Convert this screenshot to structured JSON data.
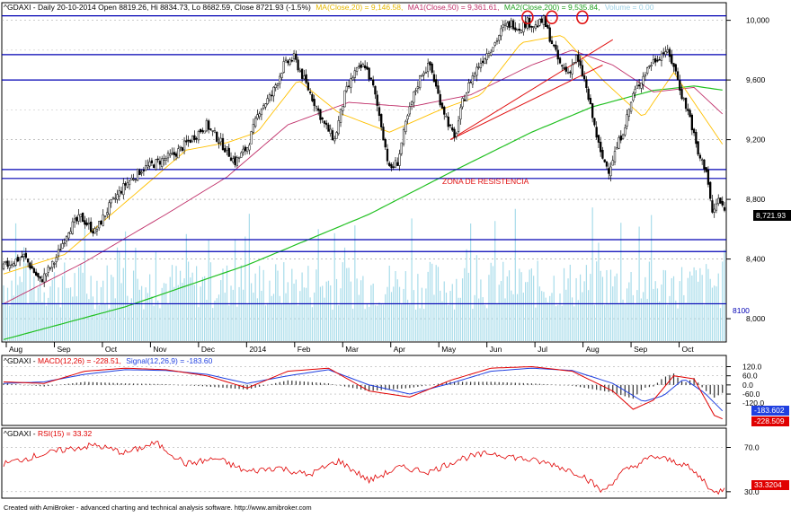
{
  "header": {
    "symbol_line": "^GDAXI - Daily 20-10-2014 Open 8819.26, Hi 8834.73, Lo 8682.59, Close 8721.93 (-1.5%)",
    "ma20": "MA(Close,20) = 9,146.58,",
    "ma50": "MA1(Close,50) = 9,361.61,",
    "ma200": "MA2(Close,200) = 9,535.84,",
    "volume": "Volume = 0.00"
  },
  "macd_header": {
    "prefix": "^GDAXI - ",
    "macd": "MACD(12,26) = -228.51,",
    "signal": "Signal(12,26,9) = -183.60"
  },
  "rsi_header": {
    "prefix": "^GDAXI - ",
    "rsi": "RSI(15) = 33.32"
  },
  "annotations": {
    "zone_label": "ZONA DE RESISTENCIA",
    "level_8100": "8100"
  },
  "last_price_tag": "8,721.93",
  "macd_tags": {
    "signal": "-183.602",
    "macd": "-228.509"
  },
  "rsi_tag": "33.3204",
  "footer": "Created with AmiBroker - advanced charting and technical analysis software. http://www.amibroker.com",
  "colors": {
    "candle": "#000000",
    "volume": "#a8dcea",
    "ma20": "#ffc000",
    "ma50": "#c0306a",
    "ma200": "#20c020",
    "hlines": "#0000b4",
    "trend": "#e01010",
    "macd": "#e00000",
    "signal": "#2040e0",
    "rsi": "#e00000"
  },
  "chart_data": [
    {
      "type": "candlestick",
      "title": "^GDAXI - Daily 20-10-2014",
      "ylim": [
        7850,
        10100
      ],
      "y_ticks": [
        8000,
        8400,
        8800,
        9200,
        9600,
        10000
      ],
      "y_tick_labels": [
        "8,000",
        "8,400",
        "8,800",
        "9,200",
        "9,600",
        "10,000"
      ],
      "x_labels": [
        "Aug",
        "Sep",
        "Oct",
        "Nov",
        "Dec",
        "2014",
        "Feb",
        "Mar",
        "Apr",
        "May",
        "Jun",
        "Jul",
        "Aug",
        "Sep",
        "Oct"
      ],
      "last": {
        "open": 8819.26,
        "high": 8834.73,
        "low": 8682.59,
        "close": 8721.93,
        "change_pct": -1.5
      },
      "close_path": [
        [
          0,
          8350
        ],
        [
          10,
          8420
        ],
        [
          18,
          8250
        ],
        [
          25,
          8380
        ],
        [
          32,
          8600
        ],
        [
          38,
          8680
        ],
        [
          45,
          8580
        ],
        [
          52,
          8750
        ],
        [
          60,
          8900
        ],
        [
          68,
          9000
        ],
        [
          76,
          9050
        ],
        [
          84,
          9100
        ],
        [
          92,
          9200
        ],
        [
          100,
          9300
        ],
        [
          107,
          9180
        ],
        [
          114,
          9050
        ],
        [
          120,
          9150
        ],
        [
          126,
          9400
        ],
        [
          132,
          9500
        ],
        [
          138,
          9700
        ],
        [
          143,
          9750
        ],
        [
          148,
          9600
        ],
        [
          153,
          9450
        ],
        [
          158,
          9300
        ],
        [
          163,
          9200
        ],
        [
          168,
          9500
        ],
        [
          173,
          9650
        ],
        [
          178,
          9700
        ],
        [
          182,
          9550
        ],
        [
          186,
          9300
        ],
        [
          190,
          9000
        ],
        [
          194,
          9050
        ],
        [
          198,
          9300
        ],
        [
          202,
          9500
        ],
        [
          206,
          9650
        ],
        [
          210,
          9700
        ],
        [
          214,
          9500
        ],
        [
          218,
          9350
        ],
        [
          222,
          9200
        ],
        [
          226,
          9450
        ],
        [
          230,
          9600
        ],
        [
          234,
          9700
        ],
        [
          238,
          9780
        ],
        [
          242,
          9850
        ],
        [
          246,
          9950
        ],
        [
          250,
          9980
        ],
        [
          254,
          9950
        ],
        [
          258,
          9990
        ],
        [
          262,
          9960
        ],
        [
          266,
          10000
        ],
        [
          270,
          9850
        ],
        [
          274,
          9700
        ],
        [
          278,
          9650
        ],
        [
          282,
          9750
        ],
        [
          286,
          9600
        ],
        [
          290,
          9350
        ],
        [
          294,
          9100
        ],
        [
          298,
          9000
        ],
        [
          302,
          9150
        ],
        [
          306,
          9300
        ],
        [
          310,
          9500
        ],
        [
          314,
          9600
        ],
        [
          318,
          9700
        ],
        [
          322,
          9750
        ],
        [
          326,
          9800
        ],
        [
          330,
          9700
        ],
        [
          334,
          9500
        ],
        [
          338,
          9350
        ],
        [
          342,
          9100
        ],
        [
          346,
          9000
        ],
        [
          349,
          8700
        ],
        [
          352,
          8800
        ],
        [
          355,
          8721.93
        ]
      ],
      "ma20_path": [
        [
          0,
          8300
        ],
        [
          30,
          8430
        ],
        [
          60,
          8780
        ],
        [
          90,
          9130
        ],
        [
          110,
          9180
        ],
        [
          125,
          9250
        ],
        [
          145,
          9600
        ],
        [
          165,
          9380
        ],
        [
          190,
          9250
        ],
        [
          215,
          9400
        ],
        [
          235,
          9500
        ],
        [
          255,
          9850
        ],
        [
          275,
          9900
        ],
        [
          295,
          9600
        ],
        [
          315,
          9350
        ],
        [
          330,
          9650
        ],
        [
          345,
          9350
        ],
        [
          355,
          9150
        ]
      ],
      "ma50_path": [
        [
          0,
          8100
        ],
        [
          40,
          8380
        ],
        [
          80,
          8700
        ],
        [
          110,
          8950
        ],
        [
          140,
          9300
        ],
        [
          170,
          9450
        ],
        [
          200,
          9420
        ],
        [
          230,
          9500
        ],
        [
          260,
          9700
        ],
        [
          280,
          9800
        ],
        [
          300,
          9700
        ],
        [
          320,
          9520
        ],
        [
          340,
          9550
        ],
        [
          355,
          9360
        ]
      ],
      "ma200_path": [
        [
          0,
          7860
        ],
        [
          60,
          8080
        ],
        [
          120,
          8360
        ],
        [
          180,
          8700
        ],
        [
          220,
          8980
        ],
        [
          260,
          9250
        ],
        [
          290,
          9420
        ],
        [
          320,
          9530
        ],
        [
          340,
          9560
        ],
        [
          355,
          9530
        ]
      ],
      "horizontal_levels": [
        10030,
        9770,
        9600,
        9000,
        8940,
        8530,
        8450,
        8100
      ],
      "resistance_zone": [
        8940,
        9000
      ],
      "trend_lines": [
        {
          "from": [
            220,
            9200
          ],
          "to": [
            300,
            9870
          ]
        },
        {
          "from": [
            220,
            9200
          ],
          "to": [
            295,
            9700
          ]
        }
      ],
      "circled_tops": [
        [
          258,
          10020
        ],
        [
          270,
          10020
        ],
        [
          285,
          10020
        ]
      ]
    },
    {
      "type": "line",
      "title": "MACD(12,26)",
      "ylim": [
        -260,
        170
      ],
      "y_ticks": [
        120,
        60,
        0,
        -60,
        -120
      ],
      "y_tick_labels": [
        "120.0",
        "60.0",
        "0.0",
        "-60.0",
        "-120.0"
      ],
      "series": [
        {
          "name": "MACD(12,26)",
          "last": -228.51,
          "values_path": [
            [
              0,
              20
            ],
            [
              20,
              10
            ],
            [
              40,
              90
            ],
            [
              60,
              110
            ],
            [
              80,
              100
            ],
            [
              100,
              60
            ],
            [
              120,
              -20
            ],
            [
              140,
              90
            ],
            [
              160,
              110
            ],
            [
              180,
              -40
            ],
            [
              200,
              -80
            ],
            [
              220,
              30
            ],
            [
              240,
              110
            ],
            [
              260,
              120
            ],
            [
              280,
              90
            ],
            [
              300,
              -40
            ],
            [
              310,
              -160
            ],
            [
              320,
              -100
            ],
            [
              330,
              60
            ],
            [
              340,
              40
            ],
            [
              350,
              -200
            ],
            [
              355,
              -228.51
            ]
          ]
        },
        {
          "name": "Signal(12,26,9)",
          "last": -183.6,
          "values_path": [
            [
              0,
              10
            ],
            [
              20,
              20
            ],
            [
              40,
              70
            ],
            [
              60,
              100
            ],
            [
              80,
              95
            ],
            [
              100,
              70
            ],
            [
              120,
              10
            ],
            [
              140,
              60
            ],
            [
              160,
              100
            ],
            [
              180,
              0
            ],
            [
              200,
              -60
            ],
            [
              220,
              10
            ],
            [
              240,
              90
            ],
            [
              260,
              110
            ],
            [
              280,
              95
            ],
            [
              300,
              10
            ],
            [
              315,
              -110
            ],
            [
              325,
              -70
            ],
            [
              335,
              40
            ],
            [
              345,
              -50
            ],
            [
              355,
              -183.6
            ]
          ]
        }
      ]
    },
    {
      "type": "line",
      "title": "RSI(15)",
      "ylim": [
        25,
        85
      ],
      "y_ticks": [
        70,
        30
      ],
      "y_tick_labels": [
        "70.0",
        "30.0"
      ],
      "series": [
        {
          "name": "RSI(15)",
          "last": 33.32,
          "values_path": [
            [
              0,
              55
            ],
            [
              15,
              62
            ],
            [
              30,
              68
            ],
            [
              45,
              72
            ],
            [
              60,
              65
            ],
            [
              75,
              74
            ],
            [
              90,
              55
            ],
            [
              105,
              60
            ],
            [
              120,
              48
            ],
            [
              135,
              52
            ],
            [
              150,
              45
            ],
            [
              165,
              58
            ],
            [
              180,
              40
            ],
            [
              195,
              52
            ],
            [
              210,
              48
            ],
            [
              225,
              60
            ],
            [
              240,
              65
            ],
            [
              255,
              60
            ],
            [
              270,
              55
            ],
            [
              285,
              45
            ],
            [
              295,
              30
            ],
            [
              305,
              48
            ],
            [
              320,
              62
            ],
            [
              335,
              55
            ],
            [
              345,
              40
            ],
            [
              350,
              28
            ],
            [
              355,
              33.32
            ]
          ]
        }
      ]
    }
  ]
}
